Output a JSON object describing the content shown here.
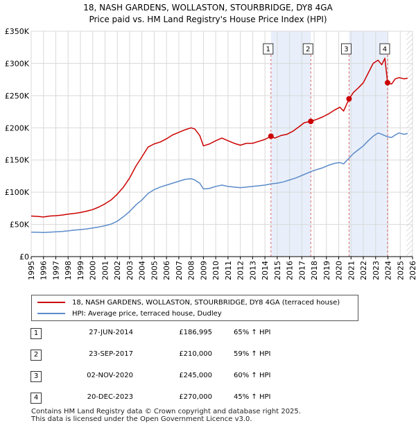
{
  "title_line1": "18, NASH GARDENS, WOLLASTON, STOURBRIDGE, DY8 4GA",
  "title_line2": "Price paid vs. HM Land Registry's House Price Index (HPI)",
  "chart_data": {
    "type": "line",
    "title": "18, NASH GARDENS, WOLLASTON, STOURBRIDGE, DY8 4GA — Price paid vs. HM Land Registry's House Price Index (HPI)",
    "xlabel": "",
    "ylabel": "",
    "xlim": [
      1995,
      2026
    ],
    "ylim": [
      0,
      350000
    ],
    "yticks": [
      0,
      50000,
      100000,
      150000,
      200000,
      250000,
      300000,
      350000
    ],
    "ytick_labels": [
      "£0",
      "£50K",
      "£100K",
      "£150K",
      "£200K",
      "£250K",
      "£300K",
      "£350K"
    ],
    "xticks": [
      1995,
      1996,
      1997,
      1998,
      1999,
      2000,
      2001,
      2002,
      2003,
      2004,
      2005,
      2006,
      2007,
      2008,
      2009,
      2010,
      2011,
      2012,
      2013,
      2014,
      2015,
      2016,
      2017,
      2018,
      2019,
      2020,
      2021,
      2022,
      2023,
      2024,
      2025,
      2026
    ],
    "series": [
      {
        "name": "18, NASH GARDENS, WOLLASTON, STOURBRIDGE, DY8 4GA (terraced house)",
        "color": "#cc0000",
        "points": [
          [
            1995.0,
            63000
          ],
          [
            1995.5,
            62500
          ],
          [
            1996.0,
            61500
          ],
          [
            1996.5,
            63000
          ],
          [
            1997.0,
            63500
          ],
          [
            1997.5,
            64500
          ],
          [
            1998.0,
            66000
          ],
          [
            1998.5,
            67000
          ],
          [
            1999.0,
            68500
          ],
          [
            1999.5,
            70500
          ],
          [
            2000.0,
            73000
          ],
          [
            2000.5,
            77000
          ],
          [
            2001.0,
            82000
          ],
          [
            2001.5,
            88000
          ],
          [
            2002.0,
            97000
          ],
          [
            2002.5,
            108000
          ],
          [
            2003.0,
            122000
          ],
          [
            2003.5,
            140000
          ],
          [
            2004.0,
            155000
          ],
          [
            2004.5,
            170000
          ],
          [
            2005.0,
            175000
          ],
          [
            2005.5,
            178000
          ],
          [
            2006.0,
            183000
          ],
          [
            2006.5,
            189000
          ],
          [
            2007.0,
            193000
          ],
          [
            2007.5,
            197000
          ],
          [
            2008.0,
            200000
          ],
          [
            2008.3,
            198000
          ],
          [
            2008.7,
            188000
          ],
          [
            2009.0,
            172000
          ],
          [
            2009.5,
            175000
          ],
          [
            2010.0,
            180000
          ],
          [
            2010.5,
            184000
          ],
          [
            2011.0,
            180000
          ],
          [
            2011.5,
            176000
          ],
          [
            2012.0,
            173000
          ],
          [
            2012.5,
            176000
          ],
          [
            2013.0,
            176000
          ],
          [
            2013.5,
            179000
          ],
          [
            2014.0,
            182000
          ],
          [
            2014.49,
            186995
          ],
          [
            2014.8,
            184000
          ],
          [
            2015.3,
            188000
          ],
          [
            2015.8,
            190000
          ],
          [
            2016.3,
            195000
          ],
          [
            2016.8,
            202000
          ],
          [
            2017.2,
            208000
          ],
          [
            2017.73,
            210000
          ],
          [
            2018.2,
            213000
          ],
          [
            2018.7,
            217000
          ],
          [
            2019.2,
            222000
          ],
          [
            2019.7,
            228000
          ],
          [
            2020.1,
            232000
          ],
          [
            2020.4,
            226000
          ],
          [
            2020.84,
            245000
          ],
          [
            2021.2,
            255000
          ],
          [
            2021.6,
            262000
          ],
          [
            2022.0,
            270000
          ],
          [
            2022.4,
            285000
          ],
          [
            2022.8,
            300000
          ],
          [
            2023.2,
            305000
          ],
          [
            2023.5,
            298000
          ],
          [
            2023.75,
            308000
          ],
          [
            2023.97,
            270000
          ],
          [
            2024.3,
            268000
          ],
          [
            2024.6,
            276000
          ],
          [
            2024.9,
            278000
          ],
          [
            2025.3,
            276000
          ],
          [
            2025.6,
            277000
          ]
        ]
      },
      {
        "name": "HPI: Average price, terraced house, Dudley",
        "color": "#5b8bc9",
        "points": [
          [
            1995.0,
            38000
          ],
          [
            1995.5,
            37800
          ],
          [
            1996.0,
            37500
          ],
          [
            1996.5,
            38000
          ],
          [
            1997.0,
            38500
          ],
          [
            1997.5,
            39000
          ],
          [
            1998.0,
            40000
          ],
          [
            1998.5,
            41000
          ],
          [
            1999.0,
            42000
          ],
          [
            1999.5,
            43000
          ],
          [
            2000.0,
            44500
          ],
          [
            2000.5,
            46000
          ],
          [
            2001.0,
            48000
          ],
          [
            2001.5,
            50500
          ],
          [
            2002.0,
            55000
          ],
          [
            2002.5,
            62000
          ],
          [
            2003.0,
            70000
          ],
          [
            2003.5,
            80000
          ],
          [
            2004.0,
            88000
          ],
          [
            2004.5,
            98000
          ],
          [
            2005.0,
            104000
          ],
          [
            2005.5,
            108000
          ],
          [
            2006.0,
            111000
          ],
          [
            2006.5,
            114000
          ],
          [
            2007.0,
            117000
          ],
          [
            2007.5,
            120000
          ],
          [
            2008.0,
            121000
          ],
          [
            2008.3,
            119000
          ],
          [
            2008.7,
            114000
          ],
          [
            2009.0,
            105000
          ],
          [
            2009.5,
            106000
          ],
          [
            2010.0,
            109000
          ],
          [
            2010.5,
            111000
          ],
          [
            2011.0,
            109000
          ],
          [
            2011.5,
            108000
          ],
          [
            2012.0,
            107000
          ],
          [
            2012.5,
            108000
          ],
          [
            2013.0,
            109000
          ],
          [
            2013.5,
            110000
          ],
          [
            2014.0,
            111000
          ],
          [
            2014.49,
            113000
          ],
          [
            2015.0,
            114000
          ],
          [
            2015.5,
            116000
          ],
          [
            2016.0,
            119000
          ],
          [
            2016.5,
            122000
          ],
          [
            2017.0,
            126000
          ],
          [
            2017.73,
            132000
          ],
          [
            2018.2,
            135000
          ],
          [
            2018.7,
            138000
          ],
          [
            2019.2,
            142000
          ],
          [
            2019.7,
            145000
          ],
          [
            2020.1,
            146000
          ],
          [
            2020.4,
            144000
          ],
          [
            2020.84,
            153000
          ],
          [
            2021.2,
            160000
          ],
          [
            2021.6,
            166000
          ],
          [
            2022.0,
            172000
          ],
          [
            2022.4,
            180000
          ],
          [
            2022.8,
            187000
          ],
          [
            2023.2,
            192000
          ],
          [
            2023.5,
            190000
          ],
          [
            2023.97,
            186000
          ],
          [
            2024.3,
            185000
          ],
          [
            2024.6,
            189000
          ],
          [
            2024.9,
            192000
          ],
          [
            2025.3,
            190000
          ],
          [
            2025.6,
            191000
          ]
        ]
      }
    ],
    "sales": [
      {
        "label": "1",
        "x": 2014.49,
        "y": 186995
      },
      {
        "label": "2",
        "x": 2017.73,
        "y": 210000
      },
      {
        "label": "3",
        "x": 2020.84,
        "y": 245000
      },
      {
        "label": "4",
        "x": 2023.97,
        "y": 270000
      }
    ],
    "shaded_ranges": [
      [
        2014.49,
        2017.73
      ],
      [
        2020.84,
        2023.97
      ]
    ],
    "hatched_range": [
      2025.5,
      2026
    ],
    "legend": [
      "18, NASH GARDENS, WOLLASTON, STOURBRIDGE, DY8 4GA (terraced house)",
      "HPI: Average price, terraced house, Dudley"
    ]
  },
  "sales_table": [
    {
      "num": "1",
      "date": "27-JUN-2014",
      "price": "£186,995",
      "hpi": "65% ↑ HPI"
    },
    {
      "num": "2",
      "date": "23-SEP-2017",
      "price": "£210,000",
      "hpi": "59% ↑ HPI"
    },
    {
      "num": "3",
      "date": "02-NOV-2020",
      "price": "£245,000",
      "hpi": "60% ↑ HPI"
    },
    {
      "num": "4",
      "date": "20-DEC-2023",
      "price": "£270,000",
      "hpi": "45% ↑ HPI"
    }
  ],
  "footer_line1": "Contains HM Land Registry data © Crown copyright and database right 2025.",
  "footer_line2": "This data is licensed under the Open Government Licence v3.0."
}
